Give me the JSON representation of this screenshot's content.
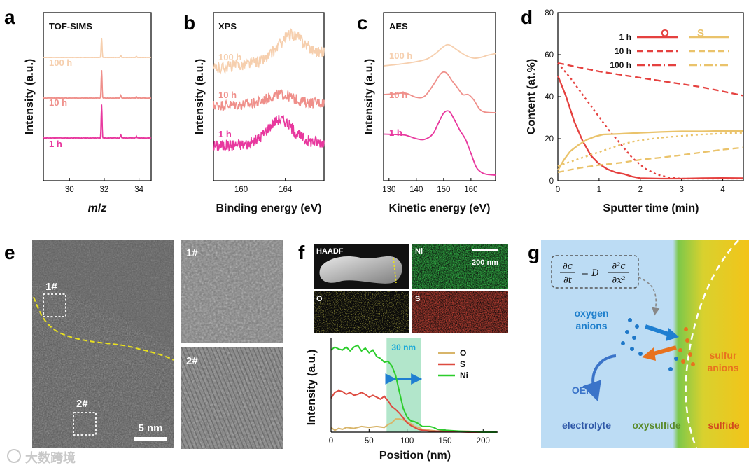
{
  "panel_labels": [
    "a",
    "b",
    "c",
    "d",
    "e",
    "f",
    "g"
  ],
  "colors": {
    "c1h": "#e8389e",
    "c10h": "#ef8f8a",
    "c100h": "#f6cfae",
    "O": "#e5413f",
    "S": "#eac36b",
    "Ni": "#2ccd2c",
    "O_f": "#d8b56a",
    "S_f": "#dd4b40",
    "accent_cyan": "#19a8d8"
  },
  "chart_data": [
    {
      "id": "a",
      "type": "line",
      "title": "TOF-SIMS",
      "xlabel_italic_1": "m",
      "xlabel_sep": "/",
      "xlabel_italic_2": "z",
      "ylabel": "Intensity (a.u.)",
      "xlim": [
        28.5,
        34.7
      ],
      "xticks": [
        "30",
        "32",
        "34"
      ],
      "xtick_values": [
        30,
        32,
        34
      ],
      "peaks": [
        {
          "x": 31.85,
          "h": 1.0
        },
        {
          "x": 32.95,
          "h": 0.1
        },
        {
          "x": 33.85,
          "h": 0.05
        }
      ],
      "series": [
        {
          "name": "1 h",
          "offset": 0,
          "scale": 1.0
        },
        {
          "name": "10 h",
          "offset": 1,
          "scale": 0.8
        },
        {
          "name": "100 h",
          "offset": 2,
          "scale": 0.55
        }
      ]
    },
    {
      "id": "b",
      "type": "line",
      "title": "XPS",
      "xlabel": "Binding energy (eV)",
      "ylabel": "Intensity (a.u.)",
      "xlim": [
        157.5,
        167.5
      ],
      "xticks": [
        "160",
        "164"
      ],
      "xtick_values": [
        160,
        164
      ],
      "series": [
        {
          "name": "1 h",
          "offset": 0,
          "baseline_left": 0.1,
          "baseline_right": 0.25,
          "peak_center": 163.5,
          "peak_height": 0.9,
          "noise": 0.22
        },
        {
          "name": "10 h",
          "offset": 1,
          "baseline_left": 0.2,
          "baseline_right": 0.3,
          "peak_center": 163.5,
          "peak_height": 0.35,
          "noise": 0.2
        },
        {
          "name": "100 h",
          "offset": 2,
          "baseline_left": 0.1,
          "baseline_right": 0.7,
          "peak_center": 164.5,
          "peak_height": 0.85,
          "noise": 0.22
        }
      ]
    },
    {
      "id": "c",
      "type": "line",
      "title": "AES",
      "xlabel": "Kinetic energy (eV)",
      "ylabel": "Intensity (a.u.)",
      "xlim": [
        128,
        169
      ],
      "xticks": [
        "130",
        "140",
        "150",
        "160"
      ],
      "xtick_values": [
        130,
        140,
        150,
        160
      ],
      "series": [
        {
          "name": "1 h",
          "points": [
            [
              128,
              0.25
            ],
            [
              132,
              0.24
            ],
            [
              136,
              0.22
            ],
            [
              140,
              0.12
            ],
            [
              143,
              0.1
            ],
            [
              146,
              0.25
            ],
            [
              148,
              0.55
            ],
            [
              150,
              0.85
            ],
            [
              152,
              0.9
            ],
            [
              154,
              0.65
            ],
            [
              156,
              0.35
            ],
            [
              158,
              0.1
            ],
            [
              160,
              -0.3
            ],
            [
              162,
              -0.7
            ],
            [
              164,
              -0.85
            ],
            [
              166,
              -0.9
            ],
            [
              169,
              -0.92
            ]
          ]
        },
        {
          "name": "10 h",
          "points": [
            [
              128,
              0.3
            ],
            [
              132,
              0.32
            ],
            [
              136,
              0.34
            ],
            [
              140,
              0.22
            ],
            [
              143,
              0.25
            ],
            [
              146,
              0.55
            ],
            [
              149,
              0.9
            ],
            [
              151,
              0.92
            ],
            [
              153,
              0.7
            ],
            [
              155,
              0.5
            ],
            [
              157,
              0.3
            ],
            [
              159,
              0.3
            ],
            [
              161,
              0.15
            ],
            [
              163,
              -0.1
            ],
            [
              165,
              -0.2
            ],
            [
              169,
              -0.22
            ]
          ]
        },
        {
          "name": "100 h",
          "points": [
            [
              128,
              0.0
            ],
            [
              134,
              0.05
            ],
            [
              140,
              0.12
            ],
            [
              144,
              0.2
            ],
            [
              147,
              0.35
            ],
            [
              150,
              0.55
            ],
            [
              152,
              0.6
            ],
            [
              155,
              0.45
            ],
            [
              158,
              0.3
            ],
            [
              161,
              0.22
            ],
            [
              164,
              0.25
            ],
            [
              166,
              0.3
            ],
            [
              169,
              0.35
            ]
          ]
        }
      ]
    },
    {
      "id": "d",
      "type": "line",
      "xlabel": "Sputter time (min)",
      "ylabel": "Content (at.%)",
      "xlim": [
        0,
        4.5
      ],
      "ylim": [
        0,
        80
      ],
      "xticks": [
        "0",
        "1",
        "2",
        "3",
        "4"
      ],
      "xtick_values": [
        0,
        1,
        2,
        3,
        4
      ],
      "yticks": [
        "0",
        "20",
        "40",
        "60",
        "80"
      ],
      "ytick_values": [
        0,
        20,
        40,
        60,
        80
      ],
      "legend_O": "O",
      "legend_S": "S",
      "legend_rows": [
        "1 h",
        "10 h",
        "100 h"
      ],
      "series": [
        {
          "name": "O 1 h",
          "element": "O",
          "style": "solid",
          "points": [
            [
              0,
              50
            ],
            [
              0.2,
              40
            ],
            [
              0.4,
              28
            ],
            [
              0.6,
              19
            ],
            [
              0.8,
              12
            ],
            [
              1.0,
              8
            ],
            [
              1.2,
              5.5
            ],
            [
              1.4,
              4
            ],
            [
              1.6,
              3.2
            ],
            [
              1.8,
              2
            ],
            [
              2.0,
              1.2
            ],
            [
              2.5,
              1
            ],
            [
              3,
              1
            ],
            [
              3.5,
              1.2
            ],
            [
              4,
              1.3
            ],
            [
              4.5,
              1.2
            ]
          ]
        },
        {
          "name": "O 10 h",
          "element": "O",
          "style": "dash",
          "points": [
            [
              0,
              56
            ],
            [
              0.5,
              54
            ],
            [
              1,
              52
            ],
            [
              1.5,
              50.5
            ],
            [
              2,
              49
            ],
            [
              2.5,
              47.5
            ],
            [
              3,
              46
            ],
            [
              3.5,
              44.5
            ],
            [
              4,
              42.5
            ],
            [
              4.5,
              40.5
            ]
          ]
        },
        {
          "name": "O 100 h",
          "element": "O",
          "style": "dot",
          "points": [
            [
              0,
              56
            ],
            [
              0.3,
              49
            ],
            [
              0.6,
              41
            ],
            [
              0.9,
              33
            ],
            [
              1.2,
              25
            ],
            [
              1.5,
              18
            ],
            [
              1.8,
              11
            ],
            [
              2.1,
              6
            ],
            [
              2.4,
              3
            ],
            [
              2.7,
              1.5
            ],
            [
              3,
              1
            ],
            [
              3.5,
              1
            ],
            [
              4,
              1
            ],
            [
              4.5,
              1
            ]
          ]
        },
        {
          "name": "S 1 h",
          "element": "S",
          "style": "solid",
          "points": [
            [
              0,
              5
            ],
            [
              0.15,
              10
            ],
            [
              0.3,
              14
            ],
            [
              0.5,
              17
            ],
            [
              0.7,
              19.5
            ],
            [
              0.9,
              21
            ],
            [
              1.1,
              22
            ],
            [
              1.5,
              22.3
            ],
            [
              2,
              22.8
            ],
            [
              2.5,
              23.2
            ],
            [
              3,
              23.5
            ],
            [
              3.5,
              23.5
            ],
            [
              4,
              23.7
            ],
            [
              4.5,
              23.6
            ]
          ]
        },
        {
          "name": "S 10 h",
          "element": "S",
          "style": "dash",
          "points": [
            [
              0,
              4
            ],
            [
              0.5,
              6
            ],
            [
              1,
              7.5
            ],
            [
              1.5,
              8.5
            ],
            [
              2,
              10
            ],
            [
              2.5,
              11
            ],
            [
              3,
              12.2
            ],
            [
              3.5,
              13.5
            ],
            [
              4,
              14.8
            ],
            [
              4.5,
              15.8
            ]
          ]
        },
        {
          "name": "S 100 h",
          "element": "S",
          "style": "dot",
          "points": [
            [
              0,
              7
            ],
            [
              0.3,
              9
            ],
            [
              0.6,
              11
            ],
            [
              0.9,
              13
            ],
            [
              1.2,
              15
            ],
            [
              1.5,
              17
            ],
            [
              1.8,
              18.5
            ],
            [
              2.1,
              19.5
            ],
            [
              2.5,
              20.5
            ],
            [
              3,
              21.3
            ],
            [
              3.5,
              22
            ],
            [
              4,
              22.5
            ],
            [
              4.5,
              22.8
            ]
          ]
        }
      ]
    },
    {
      "id": "f",
      "type": "line",
      "xlabel": "Position (nm)",
      "ylabel": "Intensity (a.u.)",
      "xlim": [
        0,
        220
      ],
      "xticks": [
        "0",
        "50",
        "100",
        "150",
        "200"
      ],
      "xtick_values": [
        0,
        50,
        100,
        150,
        200
      ],
      "highlight_range": [
        73,
        118
      ],
      "highlight_label": "30 nm",
      "series": [
        {
          "name": "O",
          "points": [
            [
              0,
              0.05
            ],
            [
              5,
              0.02
            ],
            [
              10,
              0.04
            ],
            [
              15,
              0.03
            ],
            [
              20,
              0.05
            ],
            [
              30,
              0.04
            ],
            [
              40,
              0.06
            ],
            [
              50,
              0.05
            ],
            [
              60,
              0.06
            ],
            [
              70,
              0.05
            ],
            [
              75,
              0.08
            ],
            [
              80,
              0.1
            ],
            [
              85,
              0.14
            ],
            [
              90,
              0.14
            ],
            [
              95,
              0.13
            ],
            [
              100,
              0.11
            ],
            [
              105,
              0.09
            ],
            [
              110,
              0.06
            ],
            [
              115,
              0.05
            ],
            [
              120,
              0.03
            ],
            [
              130,
              0.02
            ],
            [
              140,
              0.01
            ],
            [
              160,
              0.01
            ],
            [
              180,
              0.01
            ],
            [
              200,
              0.0
            ],
            [
              218,
              0.0
            ]
          ]
        },
        {
          "name": "S",
          "points": [
            [
              0,
              0.36
            ],
            [
              5,
              0.42
            ],
            [
              10,
              0.44
            ],
            [
              15,
              0.43
            ],
            [
              20,
              0.4
            ],
            [
              25,
              0.42
            ],
            [
              30,
              0.39
            ],
            [
              35,
              0.4
            ],
            [
              40,
              0.42
            ],
            [
              45,
              0.4
            ],
            [
              50,
              0.37
            ],
            [
              55,
              0.39
            ],
            [
              60,
              0.37
            ],
            [
              65,
              0.35
            ],
            [
              70,
              0.38
            ],
            [
              75,
              0.33
            ],
            [
              80,
              0.27
            ],
            [
              85,
              0.24
            ],
            [
              90,
              0.2
            ],
            [
              95,
              0.15
            ],
            [
              100,
              0.1
            ],
            [
              105,
              0.07
            ],
            [
              110,
              0.05
            ],
            [
              115,
              0.03
            ],
            [
              120,
              0.02
            ],
            [
              130,
              0.01
            ],
            [
              150,
              0.01
            ],
            [
              180,
              0.0
            ],
            [
              218,
              0.0
            ]
          ]
        },
        {
          "name": "Ni",
          "points": [
            [
              0,
              0.87
            ],
            [
              5,
              0.9
            ],
            [
              10,
              0.88
            ],
            [
              15,
              0.87
            ],
            [
              20,
              0.9
            ],
            [
              25,
              0.86
            ],
            [
              30,
              0.9
            ],
            [
              35,
              0.92
            ],
            [
              40,
              0.86
            ],
            [
              45,
              0.89
            ],
            [
              50,
              0.84
            ],
            [
              55,
              0.87
            ],
            [
              60,
              0.8
            ],
            [
              65,
              0.78
            ],
            [
              70,
              0.74
            ],
            [
              75,
              0.75
            ],
            [
              80,
              0.7
            ],
            [
              85,
              0.6
            ],
            [
              90,
              0.42
            ],
            [
              95,
              0.25
            ],
            [
              100,
              0.16
            ],
            [
              105,
              0.12
            ],
            [
              110,
              0.11
            ],
            [
              115,
              0.09
            ],
            [
              120,
              0.06
            ],
            [
              125,
              0.06
            ],
            [
              130,
              0.06
            ],
            [
              135,
              0.05
            ],
            [
              140,
              0.03
            ],
            [
              150,
              0.02
            ],
            [
              170,
              0.01
            ],
            [
              200,
              0.0
            ],
            [
              218,
              0.0
            ]
          ]
        }
      ]
    }
  ],
  "panel_e": {
    "marker_1": "1#",
    "marker_2": "2#",
    "scale_bar": "5 nm",
    "inset_1": "1#",
    "inset_2": "2#"
  },
  "panel_f": {
    "map_labels": [
      "HAADF",
      "Ni",
      "O",
      "S"
    ],
    "scale_bar": "200 nm"
  },
  "panel_g": {
    "equation": {
      "lhs_num": "∂c",
      "lhs_den": "∂t",
      "eq": "= D",
      "rhs_num": "∂²c",
      "rhs_den": "∂x²"
    },
    "oxygen_line1": "oxygen",
    "oxygen_line2": "anions",
    "sulfur_line1": "sulfur",
    "sulfur_line2": "anions",
    "oer": "OER",
    "electrolyte": "electrolyte",
    "oxysulfide": "oxysulfide",
    "sulfide": "sulfide"
  },
  "watermark": "大数跨境"
}
